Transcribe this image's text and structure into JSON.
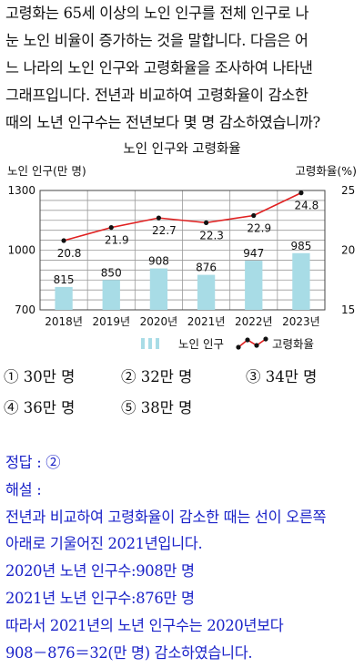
{
  "question": {
    "lines": [
      "고령화는 65세 이상의 노인 인구를 전체 인구로 나",
      "눈 노인 비율이 증가하는 것을 말합니다. 다음은 어",
      "느 나라의 노인 인구와 고령화율을 조사하여 나타낸",
      "그래프입니다. 전년과 비교하여 고령화율이 감소한",
      "때의 노년 인구수는 전년보다 몇 명 감소하였습니까?"
    ]
  },
  "chart_data": {
    "type": "bar",
    "title": "노인 인구와 고령화율",
    "ylabel_left": "노인 인구(만 명)",
    "ylabel_right": "고령화율(%)",
    "categories": [
      "2018년",
      "2019년",
      "2020년",
      "2021년",
      "2022년",
      "2023년"
    ],
    "ylim_left": [
      700,
      1300
    ],
    "ylim_right": [
      15,
      25
    ],
    "yticks_left": [
      "700",
      "1000",
      "1300"
    ],
    "yticks_right": [
      "15",
      "20",
      "25"
    ],
    "grid": true,
    "legend_placement": "bottom",
    "series": [
      {
        "name": "노인 인구",
        "type": "bar",
        "axis": "left",
        "color": "#a8dce6",
        "values": [
          815,
          850,
          908,
          876,
          947,
          985
        ],
        "labels": [
          "815",
          "850",
          "908",
          "876",
          "947",
          "985"
        ]
      },
      {
        "name": "고령화율",
        "type": "line",
        "axis": "right",
        "color": "#e02020",
        "marker_color": "#111111",
        "values": [
          20.8,
          21.9,
          22.7,
          22.3,
          22.9,
          24.8
        ],
        "labels": [
          "20.8",
          "21.9",
          "22.7",
          "22.3",
          "22.9",
          "24.8"
        ]
      }
    ]
  },
  "choices": [
    {
      "marker": "①",
      "text": "30만 명"
    },
    {
      "marker": "②",
      "text": "32만 명"
    },
    {
      "marker": "③",
      "text": "34만 명"
    },
    {
      "marker": "④",
      "text": "36만 명"
    },
    {
      "marker": "⑤",
      "text": "38만 명"
    }
  ],
  "answer": {
    "lines": [
      "정답 : ②",
      "해설 :",
      "전년과 비교하여 고령화율이 감소한 때는 선이 오른쪽",
      "아래로 기울어진 2021년입니다.",
      "2020년 노년 인구수:908만 명",
      "2021년 노년 인구수:876만 명",
      "따라서 2021년의 노년 인구수는 2020년보다",
      "908－876＝32(만 명) 감소하였습니다."
    ]
  }
}
